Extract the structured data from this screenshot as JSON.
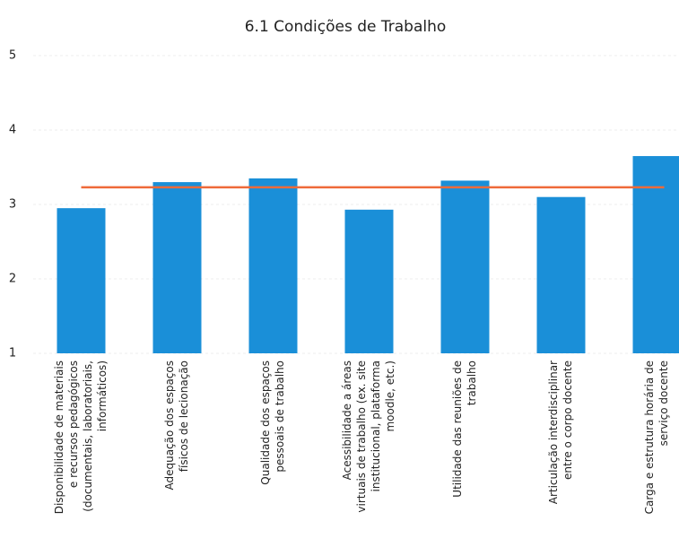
{
  "chart_data": {
    "type": "bar",
    "title": "6.1 Condições de Trabalho",
    "categories": [
      [
        "Disponibilidade de materiais",
        "e recursos pedagógicos",
        "(documentais, laboratoriais,",
        "informáticos)"
      ],
      [
        "Adequação dos espaços",
        "físicos de lecionação"
      ],
      [
        "Qualidade dos espaços",
        "pessoais de trabalho"
      ],
      [
        "Acessibilidade a áreas",
        "virtuais de trabalho (ex. site",
        "institucional, plataforma",
        "moodle, etc.)"
      ],
      [
        "Utilidade das reuniões de",
        "trabalho"
      ],
      [
        "Articulação interdisciplinar",
        "entre o corpo docente"
      ],
      [
        "Carga e estrutura horária de",
        "serviço docente"
      ]
    ],
    "values": [
      2.95,
      3.3,
      3.35,
      2.93,
      3.32,
      3.1,
      3.65
    ],
    "color": "#1a8fd8",
    "mean_line": {
      "value": 3.23,
      "color": "#ef6a3a"
    },
    "ylim": [
      1,
      5
    ],
    "yticks": [
      1,
      2,
      3,
      4,
      5
    ],
    "grid": true
  }
}
